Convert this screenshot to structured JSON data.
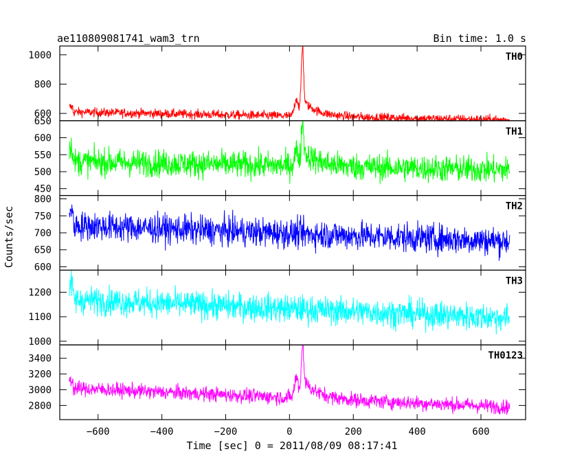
{
  "header": {
    "title": "ae110809081741_wam3_trn",
    "bin_time": "Bin time: 1.0 s"
  },
  "chart_data": {
    "type": "line",
    "xlabel": "Time [sec] 0 = 2011/08/09 08:17:41",
    "ylabel": "Counts/sec",
    "xlim": [
      -720,
      740
    ],
    "x_range": [
      -690,
      690
    ],
    "x_ticks": [
      -600,
      -400,
      -200,
      0,
      200,
      400,
      600
    ],
    "x_tick_labels": [
      "−600",
      "−400",
      "−200",
      "0",
      "200",
      "400",
      "600"
    ],
    "grid": false,
    "panels": [
      {
        "name": "TH0",
        "color": "#ff0000",
        "ylim": [
          550,
          1060
        ],
        "y_ticks": [
          600,
          800,
          1000
        ],
        "y_tick_labels": [
          "600",
          "800",
          "1000"
        ],
        "bottom_edge_label": "650",
        "baseline_start": 610,
        "baseline_end": 555,
        "noise": 22,
        "burst": {
          "peak_time": 40,
          "peak_value": 1060,
          "early_rise": 700,
          "tail": 720
        }
      },
      {
        "name": "TH1",
        "color": "#00ff00",
        "ylim": [
          430,
          650
        ],
        "y_ticks": [
          450,
          500,
          550,
          600
        ],
        "y_tick_labels": [
          "450",
          "500",
          "550",
          "600"
        ],
        "baseline_start": 530,
        "baseline_end": 505,
        "noise": 28,
        "burst": {
          "peak_time": 40,
          "peak_value": 650,
          "early_rise": 560,
          "tail": 575
        }
      },
      {
        "name": "TH2",
        "color": "#0000ff",
        "ylim": [
          590,
          810
        ],
        "y_ticks": [
          600,
          650,
          700,
          750,
          800
        ],
        "y_tick_labels": [
          "600",
          "650",
          "700",
          "750",
          "800"
        ],
        "baseline_start": 722,
        "baseline_end": 675,
        "noise": 30
      },
      {
        "name": "TH3",
        "color": "#00ffff",
        "ylim": [
          985,
          1290
        ],
        "y_ticks": [
          1000,
          1100,
          1200
        ],
        "y_tick_labels": [
          "1000",
          "1100",
          "1200"
        ],
        "baseline_start": 1170,
        "baseline_end": 1095,
        "noise": 40
      },
      {
        "name": "TH0123",
        "color": "#ff00ff",
        "ylim": [
          2620,
          3570
        ],
        "y_ticks": [
          2800,
          3000,
          3200,
          3400
        ],
        "y_tick_labels": [
          "2800",
          "3000",
          "3200",
          "3400"
        ],
        "baseline_start": 3020,
        "baseline_end": 2780,
        "noise": 65,
        "burst": {
          "peak_time": 40,
          "peak_value": 3570,
          "early_rise": 3150,
          "tail": 3200
        }
      }
    ]
  }
}
